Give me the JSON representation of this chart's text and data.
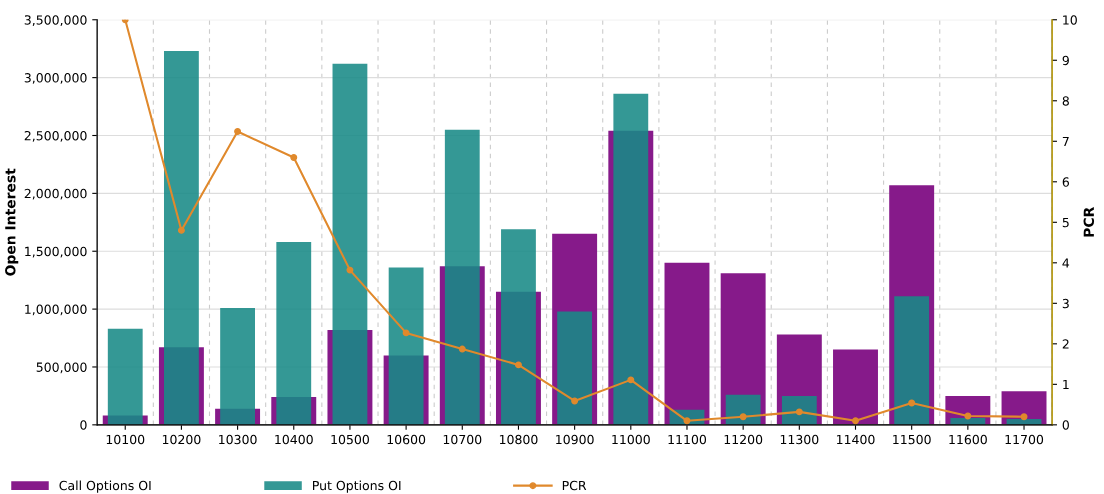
{
  "chart_data": {
    "type": "bar",
    "ylabel": "Open Interest",
    "y2label": "PCR",
    "categories": [
      "10100",
      "10200",
      "10300",
      "10400",
      "10500",
      "10600",
      "10700",
      "10800",
      "10900",
      "11000",
      "11100",
      "11200",
      "11300",
      "11400",
      "11500",
      "11600",
      "11700"
    ],
    "series": [
      {
        "name": "Call Options OI",
        "color": "#861a8a",
        "values": [
          80000,
          670000,
          140000,
          240000,
          820000,
          600000,
          1370000,
          1150000,
          1650000,
          2540000,
          1400000,
          1310000,
          780000,
          650000,
          2070000,
          250000,
          290000
        ]
      },
      {
        "name": "Put Options OI",
        "color": "#188a86",
        "values": [
          830000,
          3230000,
          1010000,
          1580000,
          3120000,
          1360000,
          2550000,
          1690000,
          980000,
          2860000,
          130000,
          260000,
          250000,
          null,
          1110000,
          60000,
          50000
        ]
      },
      {
        "name": "PCR",
        "type": "line",
        "axis": "y2",
        "color": "#e0892c",
        "marker": "circle",
        "values": [
          10,
          4.8,
          7.24,
          6.6,
          3.82,
          2.27,
          1.87,
          1.48,
          0.59,
          1.11,
          0.1,
          0.2,
          0.32,
          0.1,
          0.54,
          0.22,
          0.2
        ]
      }
    ],
    "ylim": [
      0,
      3500000
    ],
    "yticks": [
      {
        "value": 0,
        "label": "0"
      },
      {
        "value": 500000,
        "label": "500,000"
      },
      {
        "value": 1000000,
        "label": "1,000,000"
      },
      {
        "value": 1500000,
        "label": "1,500,000"
      },
      {
        "value": 2000000,
        "label": "2,000,000"
      },
      {
        "value": 2500000,
        "label": "2,500,000"
      },
      {
        "value": 3000000,
        "label": "3,000,000"
      },
      {
        "value": 3500000,
        "label": "3,500,000"
      }
    ],
    "y2lim": [
      0,
      10
    ],
    "y2ticks": [
      0,
      1,
      2,
      3,
      4,
      5,
      6,
      7,
      8,
      9,
      10
    ],
    "grid": true,
    "legend": "bottom"
  }
}
